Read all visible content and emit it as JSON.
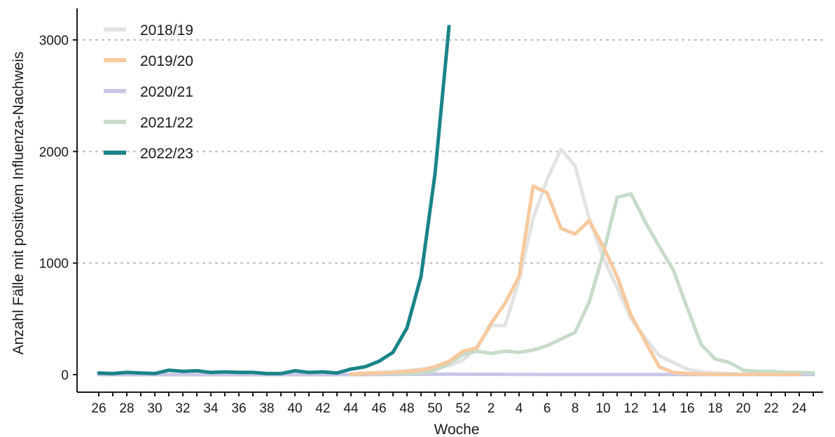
{
  "chart_data": {
    "type": "line",
    "xlabel": "Woche",
    "ylabel": "Anzahl Fälle mit positivem Influenza-Nachweis",
    "ylim": [
      0,
      3150
    ],
    "y_ticks": [
      0,
      1000,
      2000,
      3000
    ],
    "y_tick_labels": [
      "0",
      "1000",
      "2000",
      "3000"
    ],
    "x_tick_labels": [
      "26",
      "28",
      "30",
      "32",
      "34",
      "36",
      "38",
      "40",
      "42",
      "44",
      "46",
      "48",
      "50",
      "52",
      "2",
      "4",
      "6",
      "8",
      "10",
      "12",
      "14",
      "16",
      "18",
      "20",
      "22",
      "24"
    ],
    "x_tick_weeks": [
      26,
      28,
      30,
      32,
      34,
      36,
      38,
      40,
      42,
      44,
      46,
      48,
      50,
      52,
      54,
      56,
      58,
      60,
      62,
      64,
      66,
      68,
      70,
      72,
      74,
      76
    ],
    "x_range": [
      26,
      77
    ],
    "grid": "horizontal-dotted",
    "legend_position": "top-left",
    "series": [
      {
        "name": "2018/19",
        "color": "#e3e3e3",
        "weeks": [
          44,
          45,
          46,
          47,
          48,
          49,
          50,
          51,
          52,
          53,
          54,
          55,
          56,
          57,
          58,
          59,
          60,
          61,
          62,
          63,
          64,
          65,
          66,
          67,
          68,
          69,
          70,
          71,
          72,
          73,
          74,
          75
        ],
        "values": [
          10,
          15,
          20,
          25,
          35,
          50,
          60,
          80,
          130,
          250,
          440,
          440,
          850,
          1400,
          1750,
          2020,
          1870,
          1400,
          1050,
          780,
          500,
          330,
          170,
          110,
          50,
          25,
          15,
          10,
          8,
          5,
          3,
          2
        ]
      },
      {
        "name": "2019/20",
        "color": "#f7c99e",
        "weeks": [
          44,
          45,
          46,
          47,
          48,
          49,
          50,
          51,
          52,
          53,
          54,
          55,
          56,
          57,
          58,
          59,
          60,
          61,
          62,
          63,
          64,
          65,
          66,
          67,
          68,
          69,
          70,
          71,
          72,
          73,
          74,
          75,
          76
        ],
        "values": [
          5,
          10,
          15,
          20,
          30,
          40,
          70,
          120,
          210,
          240,
          460,
          640,
          880,
          1690,
          1630,
          1310,
          1260,
          1380,
          1150,
          880,
          530,
          300,
          70,
          20,
          10,
          5,
          3,
          2,
          1,
          1,
          1,
          1,
          1
        ]
      },
      {
        "name": "2020/21",
        "color": "#c9c7e6",
        "weeks": [
          26,
          30,
          34,
          38,
          42,
          46,
          50,
          54,
          58,
          62,
          66,
          70,
          74,
          77
        ],
        "values": [
          0,
          0,
          0,
          0,
          0,
          2,
          5,
          3,
          2,
          2,
          1,
          1,
          1,
          1
        ]
      },
      {
        "name": "2021/22",
        "color": "#c7dbc9",
        "weeks": [
          44,
          45,
          46,
          47,
          48,
          49,
          50,
          51,
          52,
          53,
          54,
          55,
          56,
          57,
          58,
          59,
          60,
          61,
          62,
          63,
          64,
          65,
          66,
          67,
          68,
          69,
          70,
          71,
          72,
          73,
          74,
          75,
          76,
          77
        ],
        "values": [
          5,
          8,
          10,
          10,
          10,
          15,
          40,
          100,
          180,
          210,
          190,
          210,
          200,
          220,
          260,
          320,
          380,
          650,
          1080,
          1590,
          1620,
          1370,
          1150,
          940,
          600,
          270,
          140,
          110,
          40,
          30,
          30,
          20,
          20,
          15
        ]
      },
      {
        "name": "2022/23",
        "color": "#1a8489",
        "weeks": [
          26,
          27,
          28,
          29,
          30,
          31,
          32,
          33,
          34,
          35,
          36,
          37,
          38,
          39,
          40,
          41,
          42,
          43,
          44,
          45,
          46,
          47,
          48,
          49,
          50,
          51
        ],
        "values": [
          15,
          10,
          20,
          15,
          10,
          40,
          30,
          35,
          20,
          25,
          20,
          20,
          10,
          10,
          35,
          20,
          25,
          15,
          50,
          70,
          120,
          200,
          420,
          880,
          1800,
          3120
        ]
      }
    ]
  }
}
